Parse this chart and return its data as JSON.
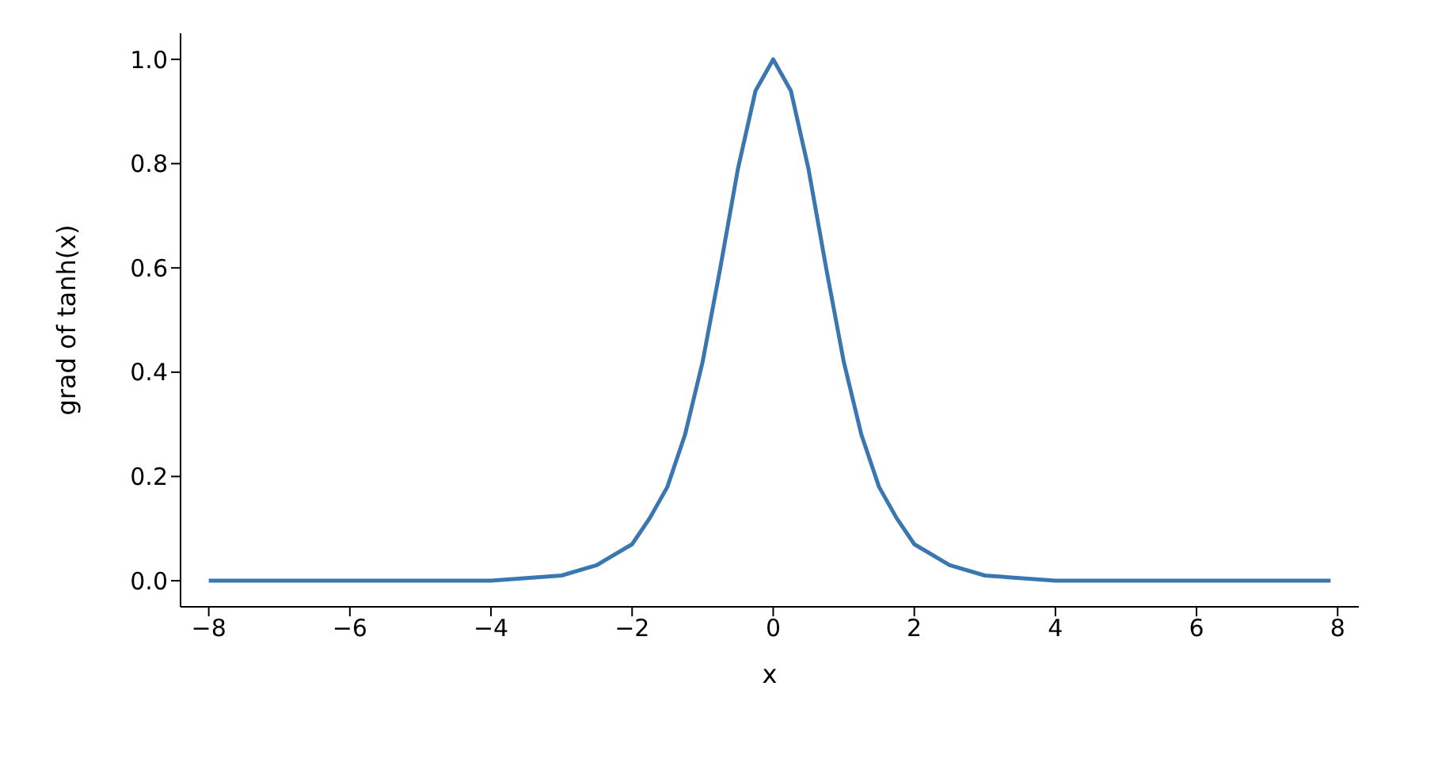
{
  "chart_data": {
    "type": "line",
    "xlabel": "x",
    "ylabel": "grad of tanh(x)",
    "x": [
      -8,
      -6,
      -5,
      -4,
      -3,
      -2.5,
      -2,
      -1.75,
      -1.5,
      -1.25,
      -1,
      -0.75,
      -0.5,
      -0.25,
      0,
      0.25,
      0.5,
      0.75,
      1,
      1.25,
      1.5,
      1.75,
      2,
      2.5,
      3,
      4,
      5,
      6,
      7.9
    ],
    "series": [
      {
        "color": "#3a76af",
        "values": [
          0,
          0,
          0,
          0,
          0.01,
          0.03,
          0.07,
          0.12,
          0.18,
          0.28,
          0.42,
          0.6,
          0.79,
          0.94,
          1,
          0.94,
          0.79,
          0.6,
          0.42,
          0.28,
          0.18,
          0.12,
          0.07,
          0.03,
          0.01,
          0,
          0,
          0,
          0
        ]
      }
    ],
    "xlim": [
      -8.4,
      8.3
    ],
    "ylim": [
      -0.05,
      1.05
    ],
    "xticks": [
      {
        "value": -8,
        "label": "−8"
      },
      {
        "value": -6,
        "label": "−6"
      },
      {
        "value": -4,
        "label": "−4"
      },
      {
        "value": -2,
        "label": "−2"
      },
      0,
      2,
      4,
      6,
      8
    ],
    "yticks": [
      {
        "value": 0,
        "label": "0.0"
      },
      {
        "value": 0.2,
        "label": "0.2"
      },
      {
        "value": 0.4,
        "label": "0.4"
      },
      {
        "value": 0.6,
        "label": "0.6"
      },
      {
        "value": 0.8,
        "label": "0.8"
      },
      {
        "value": 1,
        "label": "1.0"
      }
    ],
    "grid": false,
    "legend": false,
    "marker": "none",
    "line_style": "solid"
  }
}
